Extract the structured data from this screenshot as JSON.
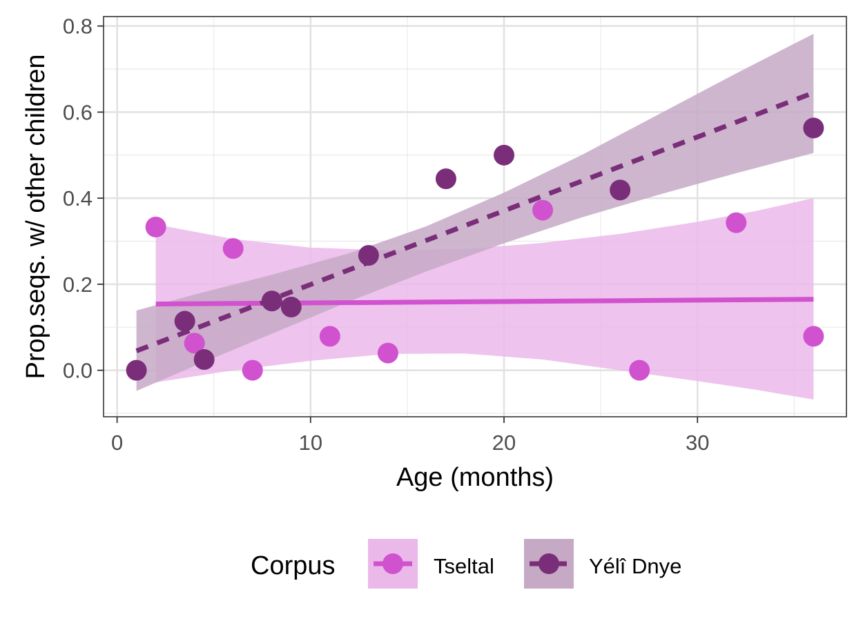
{
  "chart_data": {
    "type": "scatter",
    "xlabel": "Age (months)",
    "ylabel": "Prop.seqs. w/ other children",
    "xlim": [
      -0.7,
      37.7
    ],
    "ylim": [
      -0.108,
      0.822
    ],
    "x_ticks": [
      0,
      10,
      20,
      30
    ],
    "x_tick_labels": [
      "0",
      "10",
      "20",
      "30"
    ],
    "y_ticks": [
      0.0,
      0.2,
      0.4,
      0.6,
      0.8
    ],
    "y_tick_labels": [
      "0.0",
      "0.2",
      "0.4",
      "0.6",
      "0.8"
    ],
    "grid": true,
    "legend": {
      "title": "Corpus",
      "position": "bottom"
    },
    "series": [
      {
        "name": "Tseltal",
        "color": "#d152cf",
        "band_color": "#ebb8ea",
        "line_style": "solid",
        "points": [
          [
            2,
            0.333
          ],
          [
            4,
            0.063
          ],
          [
            6,
            0.283
          ],
          [
            7,
            0.0
          ],
          [
            11,
            0.079
          ],
          [
            14,
            0.04
          ],
          [
            22,
            0.372
          ],
          [
            27,
            0.0
          ],
          [
            32,
            0.343
          ],
          [
            36,
            0.079
          ]
        ],
        "fit": {
          "x": [
            2,
            36
          ],
          "y": [
            0.154,
            0.165
          ]
        },
        "band": [
          [
            2,
            -0.028,
            0.339
          ],
          [
            6,
            0.0,
            0.305
          ],
          [
            10,
            0.022,
            0.285
          ],
          [
            14,
            0.038,
            0.279
          ],
          [
            18,
            0.039,
            0.282
          ],
          [
            22,
            0.025,
            0.296
          ],
          [
            26,
            0.0,
            0.317
          ],
          [
            30,
            -0.025,
            0.345
          ],
          [
            33,
            -0.045,
            0.37
          ],
          [
            36,
            -0.068,
            0.4
          ]
        ]
      },
      {
        "name": "Yélî Dnye",
        "color": "#7a2e79",
        "band_color": "#c6aac5",
        "line_style": "dashed",
        "points": [
          [
            1,
            0.0
          ],
          [
            3.5,
            0.114
          ],
          [
            4.5,
            0.025
          ],
          [
            8,
            0.161
          ],
          [
            9,
            0.147
          ],
          [
            13,
            0.267
          ],
          [
            17,
            0.445
          ],
          [
            20,
            0.5
          ],
          [
            26,
            0.419
          ],
          [
            36,
            0.563
          ]
        ],
        "fit": {
          "x": [
            1,
            36
          ],
          "y": [
            0.045,
            0.645
          ]
        },
        "band": [
          [
            1,
            -0.048,
            0.139
          ],
          [
            4,
            0.01,
            0.176
          ],
          [
            8,
            0.085,
            0.222
          ],
          [
            12,
            0.16,
            0.272
          ],
          [
            16,
            0.23,
            0.335
          ],
          [
            20,
            0.295,
            0.413
          ],
          [
            24,
            0.355,
            0.5
          ],
          [
            28,
            0.408,
            0.595
          ],
          [
            32,
            0.458,
            0.69
          ],
          [
            36,
            0.505,
            0.782
          ]
        ]
      }
    ]
  }
}
